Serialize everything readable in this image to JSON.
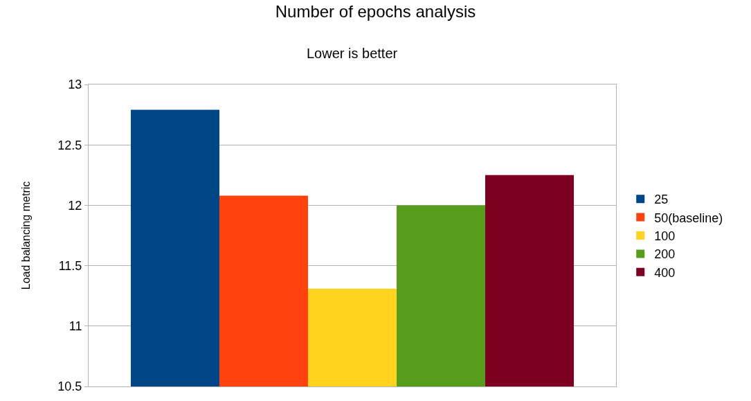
{
  "chart_data": {
    "type": "bar",
    "title": "Number of epochs analysis",
    "subtitle": "Lower is better",
    "ylabel": "Load balancing metric",
    "categories": [
      null
    ],
    "series": [
      {
        "name": "25",
        "color": "#004586",
        "values": [
          12.79
        ]
      },
      {
        "name": "50(baseline)",
        "color": "#ff420e",
        "values": [
          12.08
        ]
      },
      {
        "name": "100",
        "color": "#ffd320",
        "values": [
          11.31
        ]
      },
      {
        "name": "200",
        "color": "#579d1c",
        "values": [
          12.0
        ]
      },
      {
        "name": "400",
        "color": "#7e0021",
        "values": [
          12.25
        ]
      }
    ],
    "ylim": [
      10.5,
      13
    ],
    "yticks": [
      10.5,
      11,
      11.5,
      12,
      12.5,
      13
    ],
    "grid": "y",
    "legend": "right"
  }
}
